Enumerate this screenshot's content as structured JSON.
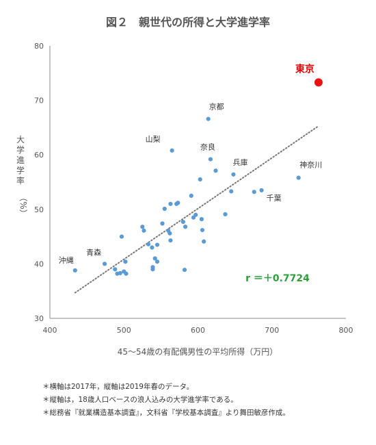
{
  "chart_data": {
    "type": "scatter",
    "title": "図２　親世代の所得と大学進学率",
    "xlabel": "45～54歳の有配偶男性の平均所得（万円）",
    "ylabel_main": "大学進学率",
    "ylabel_unit": "（%）",
    "xlim": [
      400,
      800
    ],
    "ylim": [
      30,
      80
    ],
    "xticks": [
      400,
      500,
      600,
      700,
      800
    ],
    "yticks": [
      30,
      40,
      50,
      60,
      70,
      80
    ],
    "grid": false,
    "points": [
      {
        "x": 434,
        "y": 38.8,
        "label": "沖縄"
      },
      {
        "x": 474,
        "y": 40.0,
        "label": "青森"
      },
      {
        "x": 488,
        "y": 39.0
      },
      {
        "x": 491,
        "y": 38.2
      },
      {
        "x": 495,
        "y": 38.3
      },
      {
        "x": 497,
        "y": 45.0
      },
      {
        "x": 500,
        "y": 38.6
      },
      {
        "x": 502,
        "y": 40.4
      },
      {
        "x": 503,
        "y": 38.2
      },
      {
        "x": 525,
        "y": 46.8
      },
      {
        "x": 527,
        "y": 46.1
      },
      {
        "x": 533,
        "y": 43.6
      },
      {
        "x": 538,
        "y": 43.0
      },
      {
        "x": 539,
        "y": 39.0
      },
      {
        "x": 539,
        "y": 39.4
      },
      {
        "x": 542,
        "y": 41.0
      },
      {
        "x": 545,
        "y": 40.4
      },
      {
        "x": 545,
        "y": 43.5
      },
      {
        "x": 552,
        "y": 47.4
      },
      {
        "x": 555,
        "y": 50.1
      },
      {
        "x": 560,
        "y": 46.1
      },
      {
        "x": 562,
        "y": 45.6
      },
      {
        "x": 563,
        "y": 44.3
      },
      {
        "x": 563,
        "y": 51.0
      },
      {
        "x": 565,
        "y": 60.8,
        "label": "山梨"
      },
      {
        "x": 571,
        "y": 51.0
      },
      {
        "x": 573,
        "y": 51.2
      },
      {
        "x": 580,
        "y": 47.7
      },
      {
        "x": 582,
        "y": 38.9
      },
      {
        "x": 583,
        "y": 46.8
      },
      {
        "x": 591,
        "y": 52.5
      },
      {
        "x": 594,
        "y": 48.5
      },
      {
        "x": 597,
        "y": 49.0
      },
      {
        "x": 603,
        "y": 55.5
      },
      {
        "x": 605,
        "y": 48.2
      },
      {
        "x": 606,
        "y": 46.2
      },
      {
        "x": 608,
        "y": 44.1
      },
      {
        "x": 614,
        "y": 66.6,
        "label": "京都"
      },
      {
        "x": 617,
        "y": 59.2,
        "label": "奈良"
      },
      {
        "x": 624,
        "y": 57.1
      },
      {
        "x": 637,
        "y": 49.1
      },
      {
        "x": 645,
        "y": 53.3
      },
      {
        "x": 648,
        "y": 56.4,
        "label": "兵庫"
      },
      {
        "x": 676,
        "y": 53.2
      },
      {
        "x": 686,
        "y": 53.5,
        "label": "千葉"
      },
      {
        "x": 736,
        "y": 55.8,
        "label": "神奈川"
      }
    ],
    "highlight": {
      "x": 763,
      "y": 73.3,
      "label": "東京",
      "color": "#ee1111"
    },
    "point_color": "#5b9bd5",
    "trendline": {
      "style": "dotted",
      "color": "#777777",
      "x": [
        434,
        763
      ],
      "y": [
        34.7,
        65.3
      ]
    },
    "annotation": "r ＝＋0.7724",
    "annotation_color": "#2e9e3e"
  },
  "notes": [
    "＊横軸は2017年，縦軸は2019年春のデータ。",
    "＊縦軸は，18歳人口ベースの浪人込みの大学進学率である。",
    "＊総務省『就業構造基本調査』，文科省『学校基本調査』より舞田敏彦作成。"
  ]
}
